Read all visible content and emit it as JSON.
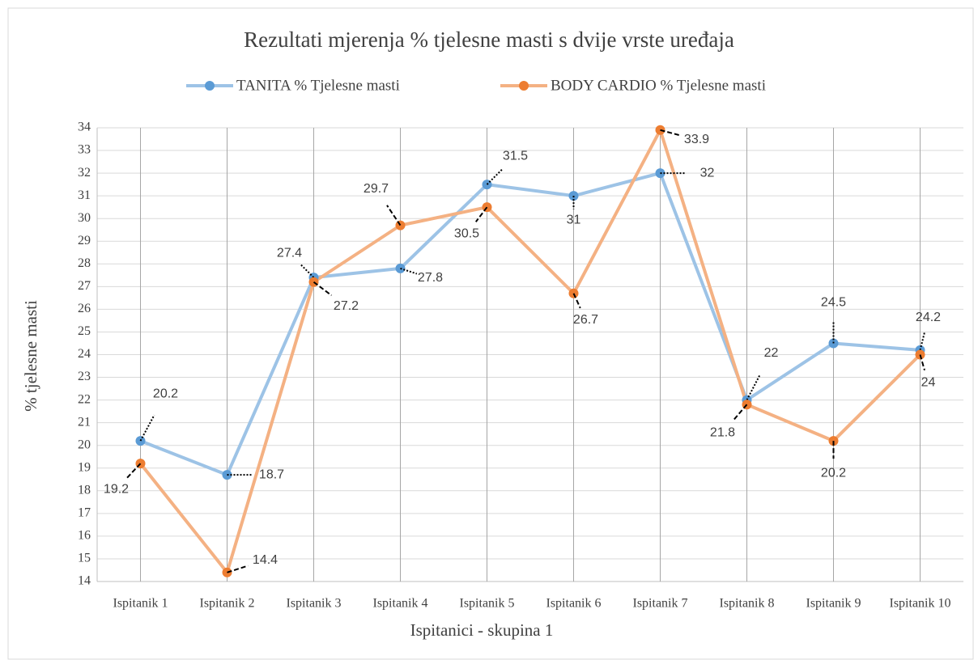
{
  "chart_data": {
    "type": "line",
    "title": "Rezultati mjerenja % tjelesne masti s dvije vrste uređaja",
    "xlabel": "Ispitanici - skupina 1",
    "ylabel": "% tjelesne masti",
    "categories": [
      "Ispitanik 1",
      "Ispitanik 2",
      "Ispitanik 3",
      "Ispitanik 4",
      "Ispitanik 5",
      "Ispitanik 6",
      "Ispitanik 7",
      "Ispitanik 8",
      "Ispitanik 9",
      "Ispitanik 10"
    ],
    "series": [
      {
        "name": "TANITA % Tjelesne masti",
        "color": "#9dc3e6",
        "marker_color": "#5b9bd5",
        "values": [
          20.2,
          18.7,
          27.4,
          27.8,
          31.5,
          31,
          32,
          22,
          24.5,
          24.2
        ]
      },
      {
        "name": "BODY CARDIO % Tjelesne masti",
        "color": "#f4b183",
        "marker_color": "#ed7d31",
        "values": [
          19.2,
          14.4,
          27.2,
          29.7,
          30.5,
          26.7,
          33.9,
          21.8,
          20.2,
          24
        ]
      }
    ],
    "ylim": [
      14,
      34
    ],
    "yticks": [
      14,
      15,
      16,
      17,
      18,
      19,
      20,
      21,
      22,
      23,
      24,
      25,
      26,
      27,
      28,
      29,
      30,
      31,
      32,
      33,
      34
    ],
    "grid": true,
    "legend": "top"
  }
}
